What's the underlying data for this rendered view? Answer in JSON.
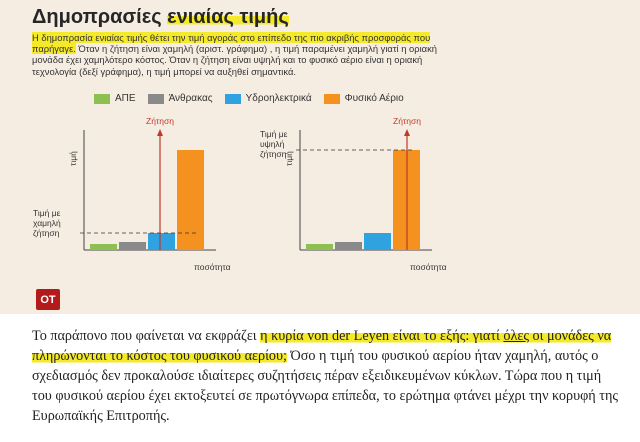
{
  "infographic": {
    "title_plain": "Δημοπρασίες",
    "title_highlight": "ενιαίας τιμής",
    "intro_highlight": "Η δημοπρασία ενιαίας τιμής θέτει την τιμή αγοράς στο επίπεδο της πιο ακριβής προσφοράς που παρήγαγε.",
    "intro_rest": " Όταν η ζήτηση είναι χαμηλή (αριστ. γράφημα) , η τιμή παραμένει χαμηλή γιατί η οριακή μονάδα έχει χαμηλότερο κόστος. Όταν η ζήτηση είναι υψηλή και το φυσικό αέριο είναι η οριακή τεχνολογία (δεξί γράφημα), η τιμή μπορεί να αυξηθεί σημαντικά.",
    "logo": "OT"
  },
  "legend": [
    {
      "label": "ΑΠΕ",
      "color": "#8cc152"
    },
    {
      "label": "Άνθρακας",
      "color": "#8a8a8a"
    },
    {
      "label": "Υδροηλεκτρικά",
      "color": "#2ea3e0"
    },
    {
      "label": "Φυσικό Αέριο",
      "color": "#f5921f"
    }
  ],
  "chart_data": [
    {
      "type": "bar",
      "categories": [
        "ΑΠΕ",
        "Άνθρακας",
        "Υδροηλεκτρικά",
        "Φυσικό Αέριο"
      ],
      "values": [
        6,
        8,
        17,
        100
      ],
      "demand_label": "Ζήτηση",
      "price_label": "Τιμή με χαμηλή ζήτηση",
      "price_level": 17,
      "ylabel": "τιμή",
      "xlabel": "ποσότητα",
      "ylim": [
        0,
        100
      ]
    },
    {
      "type": "bar",
      "categories": [
        "ΑΠΕ",
        "Άνθρακας",
        "Υδροηλεκτρικά",
        "Φυσικό Αέριο"
      ],
      "values": [
        6,
        8,
        17,
        100
      ],
      "demand_label": "Ζήτηση",
      "price_label": "Τιμή με υψηλή ζήτηση",
      "price_level": 100,
      "ylabel": "τιμή",
      "xlabel": "ποσότητα",
      "ylim": [
        0,
        100
      ]
    }
  ],
  "article": {
    "s1": "Το παράπονο που φαίνεται να εκφράζει ",
    "h1": "η κυρία von der Leyen είναι το εξής: γιατί ",
    "h1u": "όλες",
    "h1b": " οι μονάδες να πληρώνονται το κόστος του φυσικού αερίου;",
    "s2": " Όσο η τιμή του φυσικού αερίου ήταν χαμηλή, αυτός ο σχεδιασμός δεν προκαλούσε ιδιαίτερες συζητήσεις πέραν εξειδικευμένων κύκλων. Τώρα που η τιμή του φυσικού αερίου έχει εκτοξευτεί σε πρωτόγνωρα επίπεδα, το ερώτημα φτάνει μέχρι την κορυφή της Ευρωπαϊκής Επιτροπής."
  }
}
